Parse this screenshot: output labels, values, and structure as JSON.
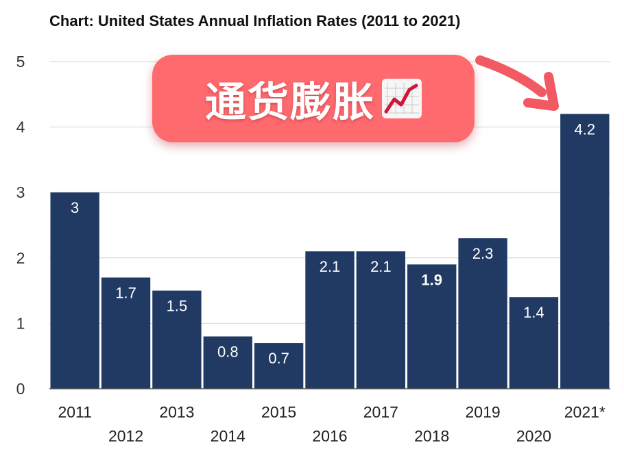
{
  "chart_data": {
    "type": "bar",
    "title": "Chart: United States Annual Inflation Rates (2011 to 2021)",
    "categories": [
      "2011",
      "2012",
      "2013",
      "2014",
      "2015",
      "2016",
      "2017",
      "2018",
      "2019",
      "2020",
      "2021*"
    ],
    "values": [
      3,
      1.7,
      1.5,
      0.8,
      0.7,
      2.1,
      2.1,
      1.9,
      2.3,
      1.4,
      4.2
    ],
    "data_labels": [
      "3",
      "1.7",
      "1.5",
      "0.8",
      "0.7",
      "2.1",
      "2.1",
      "1.9",
      "2.3",
      "1.4",
      "4.2"
    ],
    "bold_label_index": 7,
    "ylim": [
      0,
      5
    ],
    "yticks": [
      "0",
      "1",
      "2",
      "3",
      "4",
      "5"
    ],
    "grid": true,
    "bar_color": "#213a63"
  },
  "overlay": {
    "text": "通货膨胀",
    "icon": "chart-increasing-icon",
    "badge_color": "#ff6a6f",
    "arrow_color": "#f25a63"
  }
}
